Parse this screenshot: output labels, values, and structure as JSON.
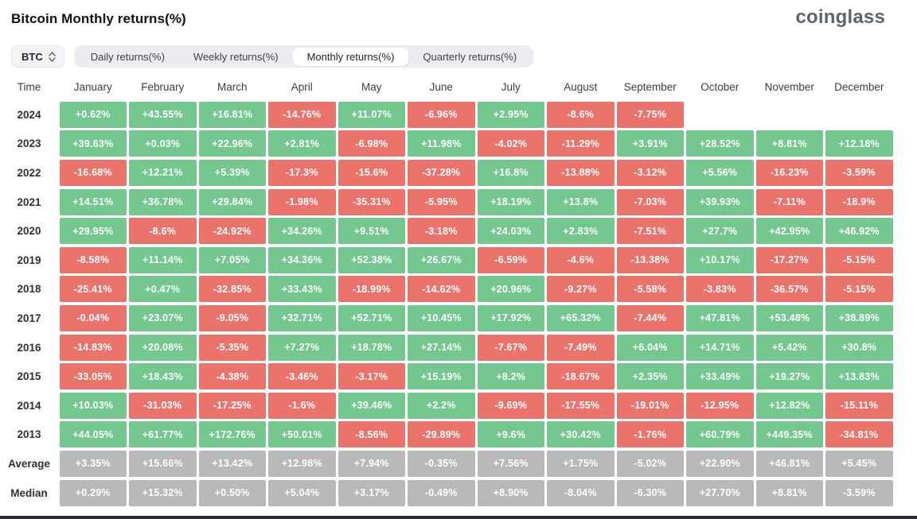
{
  "page": {
    "title": "Bitcoin Monthly returns(%)",
    "logo_text": "coinglass"
  },
  "controls": {
    "symbol_select": {
      "value": "BTC"
    },
    "tabs": [
      {
        "label": "Daily returns(%)",
        "active": false
      },
      {
        "label": "Weekly returns(%)",
        "active": false
      },
      {
        "label": "Monthly returns(%)",
        "active": true
      },
      {
        "label": "Quarterly returns(%)",
        "active": false
      }
    ]
  },
  "colors": {
    "positive": "#73c78f",
    "negative": "#ea746c",
    "neutral": "#b9b9b9",
    "cell_text": "#ffffff"
  },
  "table": {
    "columns": [
      "Time",
      "January",
      "February",
      "March",
      "April",
      "May",
      "June",
      "July",
      "August",
      "September",
      "October",
      "November",
      "December"
    ],
    "rows": [
      {
        "label": "2024",
        "style": "signed",
        "values": [
          "+0.62%",
          "+43.55%",
          "+16.81%",
          "-14.76%",
          "+11.07%",
          "-6.96%",
          "+2.95%",
          "-8.6%",
          "-7.75%",
          "",
          "",
          ""
        ]
      },
      {
        "label": "2023",
        "style": "signed",
        "values": [
          "+39.63%",
          "+0.03%",
          "+22.96%",
          "+2.81%",
          "-6.98%",
          "+11.98%",
          "-4.02%",
          "-11.29%",
          "+3.91%",
          "+28.52%",
          "+8.81%",
          "+12.18%"
        ]
      },
      {
        "label": "2022",
        "style": "signed",
        "values": [
          "-16.68%",
          "+12.21%",
          "+5.39%",
          "-17.3%",
          "-15.6%",
          "-37.28%",
          "+16.8%",
          "-13.88%",
          "-3.12%",
          "+5.56%",
          "-16.23%",
          "-3.59%"
        ]
      },
      {
        "label": "2021",
        "style": "signed",
        "values": [
          "+14.51%",
          "+36.78%",
          "+29.84%",
          "-1.98%",
          "-35.31%",
          "-5.95%",
          "+18.19%",
          "+13.8%",
          "-7.03%",
          "+39.93%",
          "-7.11%",
          "-18.9%"
        ]
      },
      {
        "label": "2020",
        "style": "signed",
        "values": [
          "+29.95%",
          "-8.6%",
          "-24.92%",
          "+34.26%",
          "+9.51%",
          "-3.18%",
          "+24.03%",
          "+2.83%",
          "-7.51%",
          "+27.7%",
          "+42.95%",
          "+46.92%"
        ]
      },
      {
        "label": "2019",
        "style": "signed",
        "values": [
          "-8.58%",
          "+11.14%",
          "+7.05%",
          "+34.36%",
          "+52.38%",
          "+26.67%",
          "-6.59%",
          "-4.6%",
          "-13.38%",
          "+10.17%",
          "-17.27%",
          "-5.15%"
        ]
      },
      {
        "label": "2018",
        "style": "signed",
        "values": [
          "-25.41%",
          "+0.47%",
          "-32.85%",
          "+33.43%",
          "-18.99%",
          "-14.62%",
          "+20.96%",
          "-9.27%",
          "-5.58%",
          "-3.83%",
          "-36.57%",
          "-5.15%"
        ]
      },
      {
        "label": "2017",
        "style": "signed",
        "values": [
          "-0.04%",
          "+23.07%",
          "-9.05%",
          "+32.71%",
          "+52.71%",
          "+10.45%",
          "+17.92%",
          "+65.32%",
          "-7.44%",
          "+47.81%",
          "+53.48%",
          "+38.89%"
        ]
      },
      {
        "label": "2016",
        "style": "signed",
        "values": [
          "-14.83%",
          "+20.08%",
          "-5.35%",
          "+7.27%",
          "+18.78%",
          "+27.14%",
          "-7.67%",
          "-7.49%",
          "+6.04%",
          "+14.71%",
          "+5.42%",
          "+30.8%"
        ]
      },
      {
        "label": "2015",
        "style": "signed",
        "values": [
          "-33.05%",
          "+18.43%",
          "-4.38%",
          "-3.46%",
          "-3.17%",
          "+15.19%",
          "+8.2%",
          "-18.67%",
          "+2.35%",
          "+33.49%",
          "+19.27%",
          "+13.83%"
        ]
      },
      {
        "label": "2014",
        "style": "signed",
        "values": [
          "+10.03%",
          "-31.03%",
          "-17.25%",
          "-1.6%",
          "+39.46%",
          "+2.2%",
          "-9.69%",
          "-17.55%",
          "-19.01%",
          "-12.95%",
          "+12.82%",
          "-15.11%"
        ]
      },
      {
        "label": "2013",
        "style": "signed",
        "values": [
          "+44.05%",
          "+61.77%",
          "+172.76%",
          "+50.01%",
          "-8.56%",
          "-29.89%",
          "+9.6%",
          "+30.42%",
          "-1.76%",
          "+60.79%",
          "+449.35%",
          "-34.81%"
        ]
      },
      {
        "label": "Average",
        "style": "gray",
        "values": [
          "+3.35%",
          "+15.66%",
          "+13.42%",
          "+12.98%",
          "+7.94%",
          "-0.35%",
          "+7.56%",
          "+1.75%",
          "-5.02%",
          "+22.90%",
          "+46.81%",
          "+5.45%"
        ]
      },
      {
        "label": "Median",
        "style": "gray",
        "values": [
          "+0.29%",
          "+15.32%",
          "+0.50%",
          "+5.04%",
          "+3.17%",
          "-0.49%",
          "+8.90%",
          "-8.04%",
          "-6.30%",
          "+27.70%",
          "+8.81%",
          "-3.59%"
        ]
      }
    ]
  }
}
